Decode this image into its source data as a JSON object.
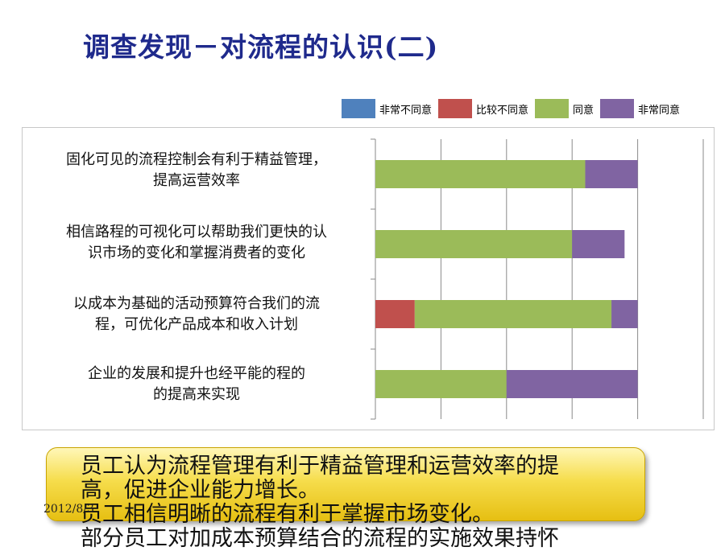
{
  "slide": {
    "title": "调查发现－对流程的认识(二)",
    "date": "2012/8/3",
    "summary_lines": [
      "员工认为流程管理有利于精益管理和运营效率的提",
      "高，促进企业能力增长。",
      "员工相信明晰的流程有利于掌握市场变化。",
      "部分员工对加成本预算结合的流程的实施效果持怀"
    ]
  },
  "legend": [
    {
      "label": "非常不同意",
      "color": "#4f81bd"
    },
    {
      "label": "比较不同意",
      "color": "#c0504d"
    },
    {
      "label": "同意",
      "color": "#9bbb59"
    },
    {
      "label": "非常同意",
      "color": "#8064a2"
    }
  ],
  "chart_data": {
    "type": "bar",
    "orientation": "horizontal",
    "stacked": true,
    "categories": [
      "固化可见的流程控制会有利于精益管理，\n提高运营效率",
      "相信路程的可视化可以帮助我们更快的认\n识市场的变化和掌握消费者的变化",
      "以成本为基础的活动预算符合我们的流\n程，可优化产品成本和收入计划",
      "企业的发展和提升也经平能的程的\n的提高来实现"
    ],
    "series": [
      {
        "name": "非常不同意",
        "color": "#4f81bd",
        "values": [
          0,
          0,
          0,
          0
        ]
      },
      {
        "name": "比较不同意",
        "color": "#c0504d",
        "values": [
          0,
          0,
          3,
          0
        ]
      },
      {
        "name": "同意",
        "color": "#9bbb59",
        "values": [
          16,
          15,
          15,
          10
        ]
      },
      {
        "name": "非常同意",
        "color": "#8064a2",
        "values": [
          4,
          4,
          2,
          10
        ]
      }
    ],
    "xlim": [
      0,
      25
    ],
    "grid": true,
    "legend_position": "top-right"
  }
}
